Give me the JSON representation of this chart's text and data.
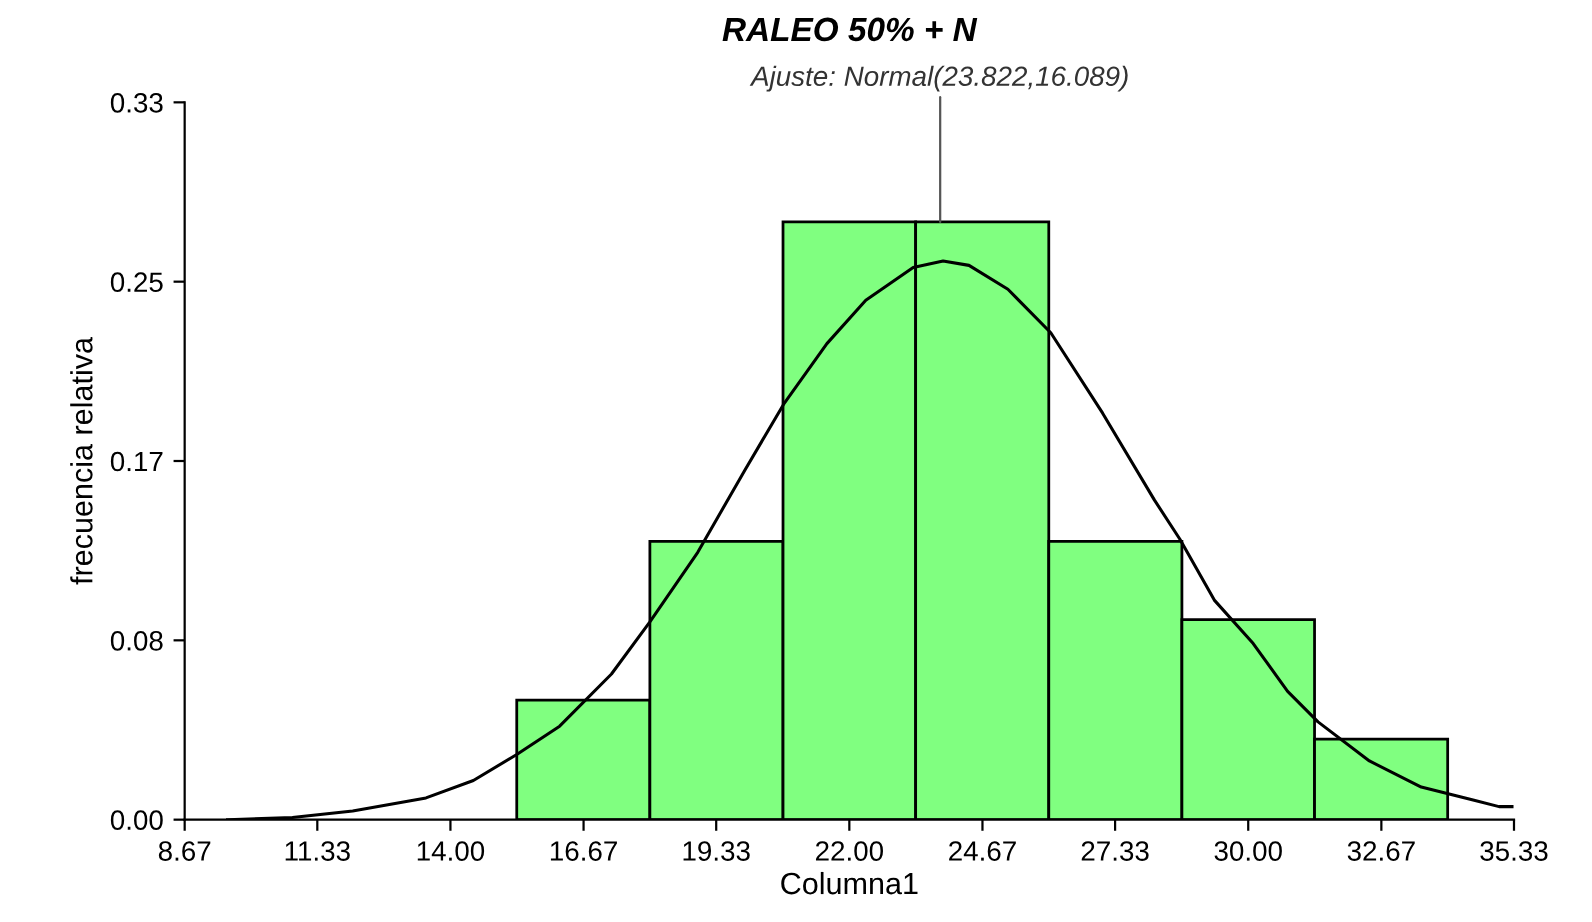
{
  "chart_data": {
    "type": "histogram",
    "title": "RALEO 50% + N",
    "xlabel": "Columna1",
    "ylabel": "frecuencia relativa",
    "bins": [
      15.33,
      18.0,
      20.67,
      23.33,
      26.0,
      28.67,
      31.33,
      34.0
    ],
    "values": [
      0.055,
      0.128,
      0.275,
      0.275,
      0.128,
      0.092,
      0.037
    ],
    "color": "#80ff80",
    "series": [
      {
        "type": "line",
        "color": "#000000",
        "x": [
          9.53,
          10.83,
          12.04,
          13.51,
          14.46,
          15.33,
          16.19,
          17.23,
          18.0,
          18.96,
          19.91,
          20.68,
          21.55,
          22.33,
          23.28,
          23.88,
          24.4,
          25.18,
          26.04,
          27.08,
          28.12,
          28.63,
          29.32,
          30.1,
          30.79,
          31.4,
          32.43,
          33.47,
          34.51,
          35.03,
          35.29
        ],
        "values": [
          0.0,
          0.001,
          0.004,
          0.01,
          0.018,
          0.03,
          0.043,
          0.067,
          0.091,
          0.123,
          0.161,
          0.191,
          0.219,
          0.239,
          0.254,
          0.257,
          0.255,
          0.244,
          0.224,
          0.187,
          0.147,
          0.129,
          0.101,
          0.081,
          0.059,
          0.045,
          0.027,
          0.015,
          0.009,
          0.006,
          0.006
        ]
      }
    ],
    "annotations": [
      {
        "text": "Ajuste: Normal(23.822,16.089)",
        "x": 23.822,
        "y": 0.275
      }
    ],
    "xlim": [
      8.67,
      35.33
    ],
    "xticks": [
      {
        "value": 8.67,
        "label": "8.67"
      },
      {
        "value": 11.33,
        "label": "11.33"
      },
      {
        "value": 14.0,
        "label": "14.00"
      },
      {
        "value": 16.67,
        "label": "16.67"
      },
      {
        "value": 19.33,
        "label": "19.33"
      },
      {
        "value": 22.0,
        "label": "22.00"
      },
      {
        "value": 24.67,
        "label": "24.67"
      },
      {
        "value": 27.33,
        "label": "27.33"
      },
      {
        "value": 30.0,
        "label": "30.00"
      },
      {
        "value": 32.67,
        "label": "32.67"
      },
      {
        "value": 35.33,
        "label": "35.33"
      }
    ],
    "ylim": [
      0,
      0.33
    ],
    "yticks": [
      {
        "value": 0,
        "label": "0.00"
      },
      {
        "value": 0.0825,
        "label": "0.08"
      },
      {
        "value": 0.165,
        "label": "0.17"
      },
      {
        "value": 0.2475,
        "label": "0.25"
      },
      {
        "value": 0.33,
        "label": "0.33"
      }
    ],
    "grid": false,
    "legend": false
  }
}
